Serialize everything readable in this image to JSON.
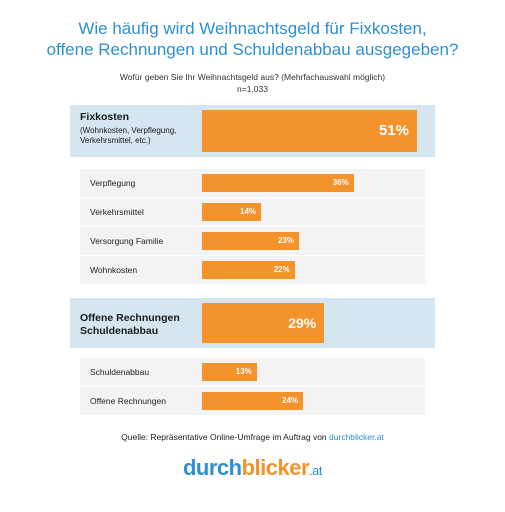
{
  "title_line1": "Wie häufig wird Weihnachtsgeld für Fixkosten,",
  "title_line2": "offene Rechnungen und Schuldenabbau ausgegeben?",
  "question": "Wofür geben Sie Ihr Weihnachtsgeld aus? (Mehrfachauswahl möglich)",
  "sample": "n=1.033",
  "source_prefix": "Quelle: Repräsentative Online-Umfrage im Auftrag von ",
  "source_link": "durchblicker.at",
  "logo": {
    "part1": "durch",
    "part2": "blicker",
    "part3": ".at"
  },
  "colors": {
    "bar": "#f4922b",
    "panel": "#d5e6f1",
    "title": "#2f8fd1",
    "row": "#f3f3f3"
  },
  "chart_data": {
    "type": "bar",
    "orientation": "horizontal",
    "unit": "%",
    "xlim": [
      0,
      51
    ],
    "groups": [
      {
        "name": "Fixkosten",
        "detail": "(Wohnkosten, Verpflegung, Verkehrsmittel, etc.)",
        "value": 51,
        "label": "51%",
        "items": [
          {
            "name": "Verpflegung",
            "value": 36,
            "label": "36%"
          },
          {
            "name": "Verkehrsmittel",
            "value": 14,
            "label": "14%"
          },
          {
            "name": "Versorgung Familie",
            "value": 23,
            "label": "23%"
          },
          {
            "name": "Wohnkosten",
            "value": 22,
            "label": "22%"
          }
        ]
      },
      {
        "name": "Offene Rechnungen Schuldenabbau",
        "name_line1": "Offene Rechnungen",
        "name_line2": "Schuldenabbau",
        "detail": "",
        "value": 29,
        "label": "29%",
        "items": [
          {
            "name": "Schuldenabbau",
            "value": 13,
            "label": "13%"
          },
          {
            "name": "Offene Rechnungen",
            "value": 24,
            "label": "24%"
          }
        ]
      }
    ]
  }
}
